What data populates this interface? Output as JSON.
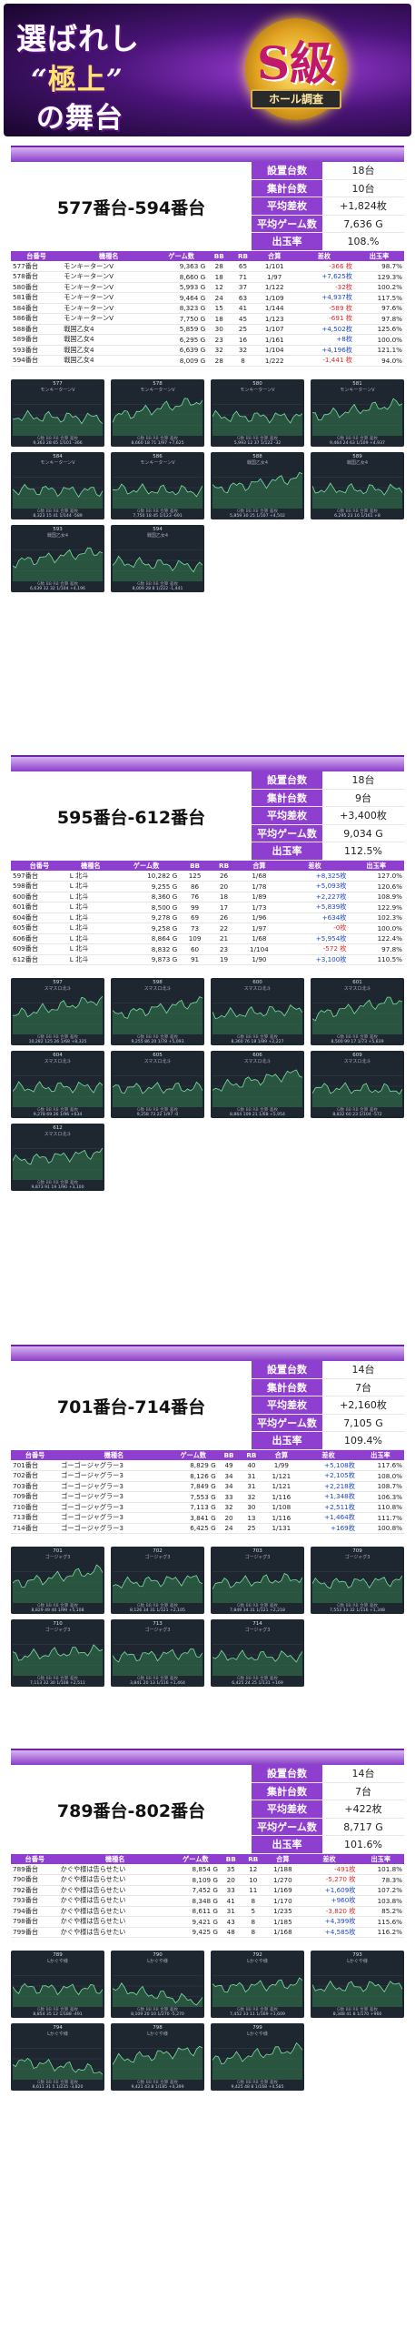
{
  "banner": {
    "line1": "選ばれし",
    "line2a": "“",
    "line2b": "極上",
    "line2c": "”",
    "line3": "の舞台",
    "badge": "S級",
    "ribbon": "ホール調査"
  },
  "stat_labels": [
    "設置台数",
    "集計台数",
    "平均差枚",
    "平均ゲーム数",
    "出玉率"
  ],
  "table_headers": [
    "台番号",
    "機種名",
    "ゲーム数",
    "BB",
    "RB",
    "合算",
    "差枚",
    "出玉率"
  ],
  "chart_footer_labels": "G数 BB RB 合算 差枚",
  "sections": [
    {
      "range": "577番台-594番台",
      "stats": [
        "18台",
        "10台",
        "+1,824枚",
        "7,636 G",
        "108.%"
      ],
      "rows": [
        [
          "577番台",
          "モンキーターンV",
          "9,363 G",
          "28",
          "65",
          "1/101",
          "-366 枚",
          "98.7%"
        ],
        [
          "578番台",
          "モンキーターンV",
          "8,660 G",
          "18",
          "71",
          "1/97",
          "+7,625枚",
          "129.3%"
        ],
        [
          "580番台",
          "モンキーターンV",
          "5,993 G",
          "12",
          "37",
          "1/122",
          "-32枚",
          "100.2%"
        ],
        [
          "581番台",
          "モンキーターンV",
          "9,464 G",
          "24",
          "63",
          "1/109",
          "+4,937枚",
          "117.5%"
        ],
        [
          "584番台",
          "モンキーターンV",
          "8,323 G",
          "15",
          "41",
          "1/144",
          "-589 枚",
          "97.6%"
        ],
        [
          "586番台",
          "モンキーターンV",
          "7,750 G",
          "18",
          "45",
          "1/123",
          "-691 枚",
          "97.8%"
        ],
        [
          "588番台",
          "戦国乙女4",
          "5,859 G",
          "30",
          "25",
          "1/107",
          "+4,502枚",
          "125.6%"
        ],
        [
          "589番台",
          "戦国乙女4",
          "6,295 G",
          "23",
          "16",
          "1/161",
          "+8枚",
          "100.0%"
        ],
        [
          "593番台",
          "戦国乙女4",
          "6,639 G",
          "32",
          "32",
          "1/104",
          "+4,196枚",
          "121.1%"
        ],
        [
          "594番台",
          "戦国乙女4",
          "8,009 G",
          "28",
          "8",
          "1/222",
          "-1,441 枚",
          "94.0%"
        ]
      ],
      "charts": [
        {
          "no": "577",
          "name": "モンキーターンV",
          "vals": "9,363 28 65 1/101 -366"
        },
        {
          "no": "578",
          "name": "モンキーターンV",
          "vals": "8,660 18 71 1/97 +7,625"
        },
        {
          "no": "580",
          "name": "モンキーターンV",
          "vals": "5,993 12 37 1/122 -32"
        },
        {
          "no": "581",
          "name": "モンキーターンV",
          "vals": "9,464 24 63 1/109 +4,937"
        },
        {
          "no": "584",
          "name": "モンキーターンV",
          "vals": "8,323 15 41 1/144 -589"
        },
        {
          "no": "586",
          "name": "モンキーターンV",
          "vals": "7,750 18 45 1/123 -691"
        },
        {
          "no": "588",
          "name": "戦国乙女4",
          "vals": "5,859 30 25 1/107 +4,502"
        },
        {
          "no": "589",
          "name": "戦国乙女4",
          "vals": "6,295 23 16 1/161 +8"
        },
        {
          "no": "593",
          "name": "戦国乙女4",
          "vals": "6,639 32 32 1/104 +4,196"
        },
        {
          "no": "594",
          "name": "戦国乙女4",
          "vals": "8,009 28 8 1/222 -1,441"
        }
      ]
    },
    {
      "range": "595番台-612番台",
      "stats": [
        "18台",
        "9台",
        "+3,400枚",
        "9,034 G",
        "112.5%"
      ],
      "rows": [
        [
          "597番台",
          "L 北斗",
          "10,282 G",
          "125",
          "26",
          "1/68",
          "+8,325枚",
          "127.0%"
        ],
        [
          "598番台",
          "L 北斗",
          "9,255 G",
          "86",
          "20",
          "1/78",
          "+5,093枚",
          "120.6%"
        ],
        [
          "600番台",
          "L 北斗",
          "8,360 G",
          "76",
          "18",
          "1/89",
          "+2,227枚",
          "108.9%"
        ],
        [
          "601番台",
          "L 北斗",
          "8,500 G",
          "99",
          "17",
          "1/73",
          "+5,839枚",
          "122.9%"
        ],
        [
          "604番台",
          "L 北斗",
          "9,278 G",
          "69",
          "26",
          "1/96",
          "+634枚",
          "102.3%"
        ],
        [
          "605番台",
          "L 北斗",
          "9,258 G",
          "73",
          "22",
          "1/97",
          "-0枚",
          "100.0%"
        ],
        [
          "606番台",
          "L 北斗",
          "8,864 G",
          "109",
          "21",
          "1/68",
          "+5,954枚",
          "122.4%"
        ],
        [
          "609番台",
          "L 北斗",
          "8,832 G",
          "60",
          "23",
          "1/104",
          "-572 枚",
          "97.8%"
        ],
        [
          "612番台",
          "L 北斗",
          "9,873 G",
          "91",
          "19",
          "1/90",
          "+3,100枚",
          "110.5%"
        ]
      ],
      "charts": [
        {
          "no": "597",
          "name": "スマスロ北斗",
          "vals": "10,282 125 26 1/68 +8,325"
        },
        {
          "no": "598",
          "name": "スマスロ北斗",
          "vals": "9,255 86 20 1/78 +5,093"
        },
        {
          "no": "600",
          "name": "スマスロ北斗",
          "vals": "8,360 76 18 1/89 +2,227"
        },
        {
          "no": "601",
          "name": "スマスロ北斗",
          "vals": "8,500 99 17 1/73 +5,839"
        },
        {
          "no": "604",
          "name": "スマスロ北斗",
          "vals": "9,278 69 26 1/96 +634"
        },
        {
          "no": "605",
          "name": "スマスロ北斗",
          "vals": "9,258 73 22 1/97 -0"
        },
        {
          "no": "606",
          "name": "スマスロ北斗",
          "vals": "8,864 109 21 1/68 +5,954"
        },
        {
          "no": "609",
          "name": "スマスロ北斗",
          "vals": "8,832 60 23 1/104 -572"
        },
        {
          "no": "612",
          "name": "スマスロ北斗",
          "vals": "9,873 91 19 1/90 +3,100"
        }
      ]
    },
    {
      "range": "701番台-714番台",
      "stats": [
        "14台",
        "7台",
        "+2,160枚",
        "7,105 G",
        "109.4%"
      ],
      "rows": [
        [
          "701番台",
          "ゴーゴージャグラー3",
          "8,829 G",
          "49",
          "40",
          "1/99",
          "+5,108枚",
          "117.6%"
        ],
        [
          "702番台",
          "ゴーゴージャグラー3",
          "8,126 G",
          "34",
          "31",
          "1/121",
          "+2,105枚",
          "108.0%"
        ],
        [
          "703番台",
          "ゴーゴージャグラー3",
          "7,849 G",
          "34",
          "31",
          "1/121",
          "+2,218枚",
          "108.7%"
        ],
        [
          "709番台",
          "ゴーゴージャグラー3",
          "7,553 G",
          "33",
          "32",
          "1/116",
          "+1,348枚",
          "106.3%"
        ],
        [
          "710番台",
          "ゴーゴージャグラー3",
          "7,113 G",
          "32",
          "30",
          "1/108",
          "+2,511枚",
          "110.8%"
        ],
        [
          "713番台",
          "ゴーゴージャグラー3",
          "3,841 G",
          "20",
          "13",
          "1/116",
          "+1,464枚",
          "111.7%"
        ],
        [
          "714番台",
          "ゴーゴージャグラー3",
          "6,425 G",
          "24",
          "25",
          "1/131",
          "+169枚",
          "100.8%"
        ]
      ],
      "charts": [
        {
          "no": "701",
          "name": "ゴージャグ3",
          "vals": "8,829 49 40 1/99 +5,108"
        },
        {
          "no": "702",
          "name": "ゴージャグ3",
          "vals": "8,126 34 31 1/121 +2,105"
        },
        {
          "no": "703",
          "name": "ゴージャグ3",
          "vals": "7,849 34 31 1/121 +2,218"
        },
        {
          "no": "709",
          "name": "ゴージャグ3",
          "vals": "7,553 33 32 1/116 +1,348"
        },
        {
          "no": "710",
          "name": "ゴージャグ3",
          "vals": "7,113 32 30 1/108 +2,511"
        },
        {
          "no": "713",
          "name": "ゴージャグ3",
          "vals": "3,841 20 13 1/116 +1,464"
        },
        {
          "no": "714",
          "name": "ゴージャグ3",
          "vals": "6,425 24 25 1/131 +169"
        }
      ]
    },
    {
      "range": "789番台-802番台",
      "stats": [
        "14台",
        "7台",
        "+422枚",
        "8,717 G",
        "101.6%"
      ],
      "rows": [
        [
          "789番台",
          "かぐや様は告らせたい",
          "8,854 G",
          "35",
          "12",
          "1/188",
          "-491枚",
          "101.8%"
        ],
        [
          "790番台",
          "かぐや様は告らせたい",
          "8,109 G",
          "20",
          "10",
          "1/270",
          "-5,270 枚",
          "78.3%"
        ],
        [
          "792番台",
          "かぐや様は告らせたい",
          "7,452 G",
          "33",
          "11",
          "1/169",
          "+1,609枚",
          "107.2%"
        ],
        [
          "793番台",
          "かぐや様は告らせたい",
          "8,348 G",
          "41",
          "8",
          "1/170",
          "+960枚",
          "103.8%"
        ],
        [
          "794番台",
          "かぐや様は告らせたい",
          "8,611 G",
          "31",
          "5",
          "1/235",
          "-3,820 枚",
          "85.2%"
        ],
        [
          "798番台",
          "かぐや様は告らせたい",
          "9,421 G",
          "43",
          "8",
          "1/185",
          "+4,399枚",
          "115.6%"
        ],
        [
          "799番台",
          "かぐや様は告らせたい",
          "9,425 G",
          "48",
          "8",
          "1/168",
          "+4,585枚",
          "116.2%"
        ]
      ],
      "charts": [
        {
          "no": "789",
          "name": "Lかぐや様",
          "vals": "8,854 35 12 1/188 -491"
        },
        {
          "no": "790",
          "name": "Lかぐや様",
          "vals": "8,109 20 10 1/270 -5,270"
        },
        {
          "no": "792",
          "name": "Lかぐや様",
          "vals": "7,452 33 11 1/169 +1,609"
        },
        {
          "no": "793",
          "name": "Lかぐや様",
          "vals": "8,348 41 8 1/170 +960"
        },
        {
          "no": "794",
          "name": "Lかぐや様",
          "vals": "8,611 31 5 1/235 -3,820"
        },
        {
          "no": "798",
          "name": "Lかぐや様",
          "vals": "9,421 43 8 1/185 +4,399"
        },
        {
          "no": "799",
          "name": "Lかぐや様",
          "vals": "9,425 48 8 1/168 +4,585"
        }
      ]
    }
  ]
}
